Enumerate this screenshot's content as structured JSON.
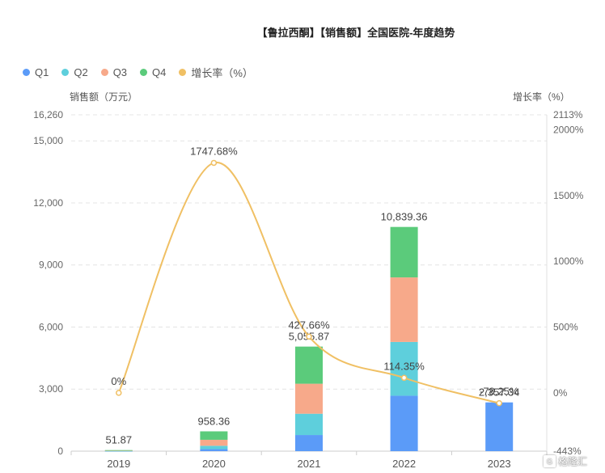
{
  "chart_data": {
    "type": "bar",
    "title": "【鲁拉西酮】【销售额】全国医院-年度趋势",
    "categories": [
      "2019",
      "2020",
      "2021",
      "2022",
      "2023"
    ],
    "series": [
      {
        "name": "Q1",
        "color": "#5b9bf8",
        "values": [
          12,
          100,
          780,
          2680,
          2357.34
        ]
      },
      {
        "name": "Q2",
        "color": "#5ecfdc",
        "values": [
          12,
          160,
          1030,
          2600,
          0
        ]
      },
      {
        "name": "Q3",
        "color": "#f7a98a",
        "values": [
          12,
          290,
          1450,
          3120,
          0
        ]
      },
      {
        "name": "Q4",
        "color": "#5bcb7b",
        "values": [
          15.87,
          408.36,
          1795.87,
          2439.36,
          0
        ]
      }
    ],
    "totals": [
      "51.87",
      "958.36",
      "5,055.87",
      "10,839.36",
      "2,357.34"
    ],
    "line": {
      "name": "增长率（%）",
      "color": "#f0c064",
      "values": [
        0,
        1747.68,
        427.66,
        114.35,
        -78.25
      ],
      "labels": [
        "0%",
        "1747.68%",
        "427.66%",
        "114.35%",
        "-78.25%"
      ]
    },
    "ylabel": "销售额（万元）",
    "y2label": "增长率（%）",
    "ylim": [
      0,
      16260
    ],
    "y_ticks": [
      "0",
      "3,000",
      "6,000",
      "9,000",
      "12,000",
      "15,000",
      "16,260"
    ],
    "y2lim": [
      -443,
      2113
    ],
    "y2_ticks": [
      "-443%",
      "0%",
      "500%",
      "1000%",
      "1500%",
      "2000%",
      "2113%"
    ],
    "grid": true,
    "legend": "top-left"
  },
  "watermark": {
    "text": "格隆汇",
    "logo": "G"
  }
}
